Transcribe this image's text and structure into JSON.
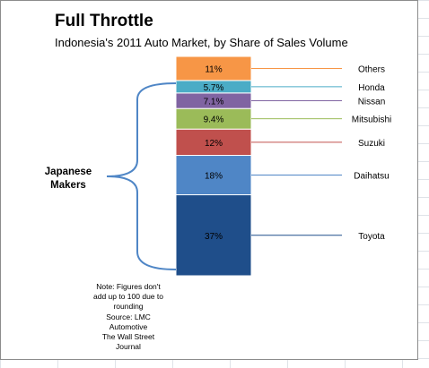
{
  "chart_data": {
    "type": "bar",
    "title": "Full Throttle",
    "subtitle": "Indonesia's 2011 Auto Market, by Share of Sales Volume",
    "categories": [
      "Toyota",
      "Daihatsu",
      "Suzuki",
      "Mitsubishi",
      "Nissan",
      "Honda",
      "Others"
    ],
    "values": [
      37,
      18,
      12,
      9.4,
      7.1,
      5.7,
      11
    ],
    "value_labels": [
      "37%",
      "18%",
      "12%",
      "9.4%",
      "7.1%",
      "5.7%",
      "11%"
    ],
    "colors": [
      "#1f4e8a",
      "#4f86c6",
      "#c0504d",
      "#9bbb59",
      "#8064a2",
      "#4bacc6",
      "#f79646"
    ],
    "stacked": true,
    "bracket_label": [
      "Japanese",
      "Makers"
    ],
    "note_lines": [
      "Note: Figures don't",
      "add up to 100 due to",
      "rounding",
      "Source: LMC",
      "Automotive",
      "The Wall Street",
      "Journal"
    ],
    "grid": false
  }
}
